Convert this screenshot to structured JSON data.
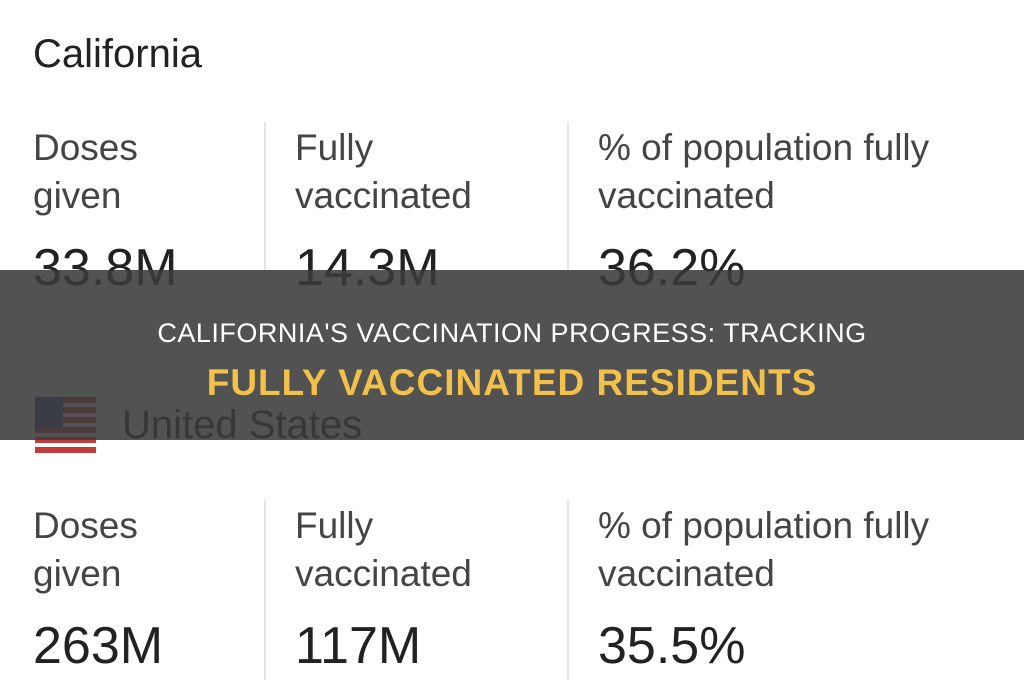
{
  "sections": [
    {
      "title": "California",
      "stats": [
        {
          "label": "Doses given",
          "value": "33.8M"
        },
        {
          "label": "Fully vaccinated",
          "value": "14.3M"
        },
        {
          "label": "% of population fully vaccinated",
          "value": "36.2%"
        }
      ]
    },
    {
      "title": "United States",
      "stats": [
        {
          "label": "Doses given",
          "value": "263M"
        },
        {
          "label": "Fully vaccinated",
          "value": "117M"
        },
        {
          "label": "% of population fully vaccinated",
          "value": "35.5%"
        }
      ]
    }
  ],
  "banner": {
    "line1": "CALIFORNIA'S VACCINATION PROGRESS: TRACKING",
    "line2": "FULLY VACCINATED RESIDENTS"
  }
}
